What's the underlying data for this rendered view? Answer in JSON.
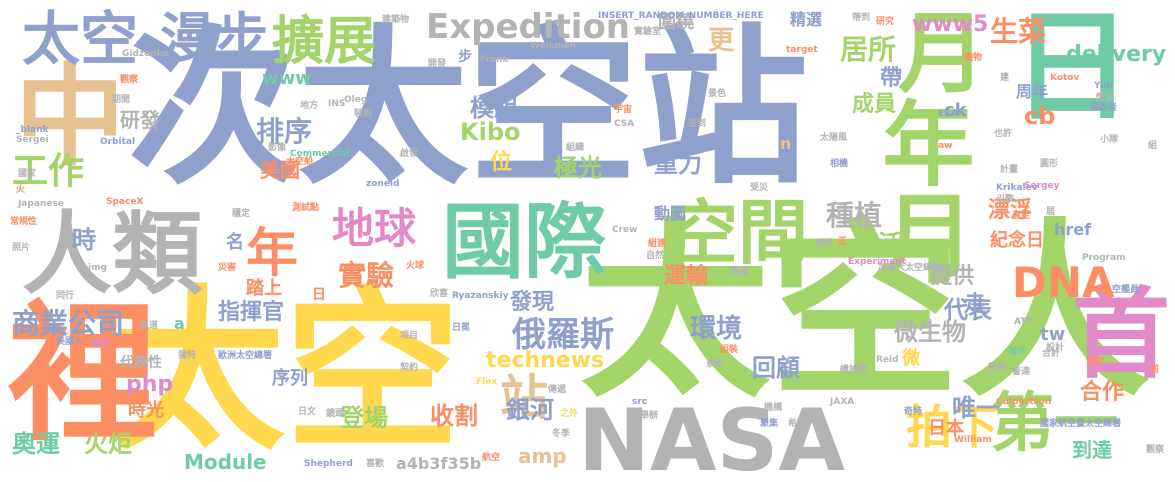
{
  "palette": {
    "blue": "#8fa0cc",
    "green": "#a2d46a",
    "yellow": "#ffd84d",
    "orange": "#fb8e63",
    "pink": "#e289c8",
    "teal": "#6ecba6",
    "tan": "#e5c290",
    "gray": "#b3b3b3"
  },
  "words": [
    {
      "text": "次太空站"
    },
    {
      "text": "太空人"
    },
    {
      "text": "太空"
    },
    {
      "text": "國際"
    },
    {
      "text": "NASA"
    },
    {
      "text": "中"
    },
    {
      "text": "裡"
    },
    {
      "text": "人類"
    },
    {
      "text": "年月"
    },
    {
      "text": "日"
    },
    {
      "text": "月"
    },
    {
      "text": "首"
    },
    {
      "text": "空間"
    },
    {
      "text": "太空"
    },
    {
      "text": "漫步"
    },
    {
      "text": "擴展"
    },
    {
      "text": "Expedition"
    },
    {
      "text": "地球"
    },
    {
      "text": "年"
    },
    {
      "text": "第一"
    },
    {
      "text": "DNA"
    },
    {
      "text": "工作"
    },
    {
      "text": "拍下"
    },
    {
      "text": "站"
    },
    {
      "text": "俄羅斯"
    },
    {
      "text": "商業公司"
    },
    {
      "text": "實驗"
    },
    {
      "text": "排序"
    },
    {
      "text": "種植"
    },
    {
      "text": "居所"
    },
    {
      "text": "生菜"
    },
    {
      "text": "www5"
    },
    {
      "text": "delivery"
    },
    {
      "text": "模組"
    },
    {
      "text": "Kibo"
    },
    {
      "text": "成員"
    },
    {
      "text": "cb"
    },
    {
      "text": "環境"
    },
    {
      "text": "運輸"
    },
    {
      "text": "生活"
    },
    {
      "text": "重力"
    },
    {
      "text": "極光"
    },
    {
      "text": "指揮官"
    },
    {
      "text": "奧運"
    },
    {
      "text": "火炬"
    },
    {
      "text": "Module"
    },
    {
      "text": "technews"
    },
    {
      "text": "銀河"
    },
    {
      "text": "登場"
    },
    {
      "text": "收割"
    },
    {
      "text": "回顧"
    },
    {
      "text": "合作"
    },
    {
      "text": "唯一"
    },
    {
      "text": "到達"
    },
    {
      "text": "微生物"
    },
    {
      "text": "代表"
    },
    {
      "text": "提供"
    },
    {
      "text": "漂浮"
    },
    {
      "text": "紀念日"
    },
    {
      "text": "href"
    },
    {
      "text": "amp"
    },
    {
      "text": "a4b3f35b"
    },
    {
      "text": "php"
    },
    {
      "text": "發現"
    },
    {
      "text": "研發"
    },
    {
      "text": "帶"
    },
    {
      "text": "周年"
    },
    {
      "text": "www"
    },
    {
      "text": "更"
    },
    {
      "text": "圍繞"
    },
    {
      "text": "美國"
    },
    {
      "text": "序列"
    },
    {
      "text": "時光"
    },
    {
      "text": "代表性"
    },
    {
      "text": "踏上"
    },
    {
      "text": "時"
    },
    {
      "text": "名"
    },
    {
      "text": "位"
    },
    {
      "text": "精選"
    },
    {
      "text": "動圖"
    },
    {
      "text": "日本"
    },
    {
      "text": "走"
    },
    {
      "text": "微"
    },
    {
      "text": "tw"
    },
    {
      "text": "ck"
    },
    {
      "text": "n"
    },
    {
      "text": "a"
    },
    {
      "text": "日"
    },
    {
      "text": "步"
    },
    {
      "text": "INSERT_RANDOM_NUMBER_HERE"
    },
    {
      "text": "實驗室"
    },
    {
      "text": "帶到"
    },
    {
      "text": "研究"
    },
    {
      "text": "建築物"
    },
    {
      "text": "Frank"
    },
    {
      "text": "Weisman"
    },
    {
      "text": "Gidzenko"
    },
    {
      "text": "觀察"
    },
    {
      "text": "期間"
    },
    {
      "text": "地方"
    },
    {
      "text": "INS"
    },
    {
      "text": "Oleg"
    },
    {
      "text": "裝到"
    },
    {
      "text": "開發"
    },
    {
      "text": "_blank"
    },
    {
      "text": "Sergei"
    },
    {
      "text": "Orbital"
    },
    {
      "text": "Commercial"
    },
    {
      "text": "影像"
    },
    {
      "text": "國家"
    },
    {
      "text": "太空船"
    },
    {
      "text": "SpaceX"
    },
    {
      "text": "測試點"
    },
    {
      "text": "Japanese"
    },
    {
      "text": "zoneid"
    },
    {
      "text": "穩定"
    },
    {
      "text": "常規性"
    },
    {
      "text": "照片"
    },
    {
      "text": "img"
    },
    {
      "text": "災害"
    },
    {
      "text": "火球"
    },
    {
      "text": "同行"
    },
    {
      "text": "軌道"
    },
    {
      "text": "美國人"
    },
    {
      "text": "慶祝"
    },
    {
      "text": "獨特"
    },
    {
      "text": "歐洲太空總署"
    },
    {
      "text": "Ryazanskiy"
    },
    {
      "text": "欣喜"
    },
    {
      "text": "項目"
    },
    {
      "text": "日冕"
    },
    {
      "text": "契約"
    },
    {
      "text": "傳遞"
    },
    {
      "text": "日文"
    },
    {
      "text": "鏡頭"
    },
    {
      "text": "之外"
    },
    {
      "text": "Flex"
    },
    {
      "text": "冬季"
    },
    {
      "text": "Shepherd"
    },
    {
      "text": "喜歡"
    },
    {
      "text": "航空"
    },
    {
      "text": "src"
    },
    {
      "text": "舉辦"
    },
    {
      "text": "機構"
    },
    {
      "text": "聚集"
    },
    {
      "text": "希望"
    },
    {
      "text": "JAXA"
    },
    {
      "text": "William"
    },
    {
      "text": "奇特"
    },
    {
      "text": "國家航空暨太空總署"
    },
    {
      "text": "Culbertson"
    },
    {
      "text": "新聞"
    },
    {
      "text": "警達"
    },
    {
      "text": "揭示"
    },
    {
      "text": "設計"
    },
    {
      "text": "Reid"
    },
    {
      "text": "機械臂"
    },
    {
      "text": "景象"
    },
    {
      "text": "組裝"
    },
    {
      "text": "ATK"
    },
    {
      "text": "合計"
    },
    {
      "text": "發射"
    },
    {
      "text": "空艦員"
    },
    {
      "text": "Program"
    },
    {
      "text": "加拿大太空總署"
    },
    {
      "text": "Experiment"
    },
    {
      "text": "奧運"
    },
    {
      "text": "組建"
    },
    {
      "text": "自然"
    },
    {
      "text": "Crew"
    },
    {
      "text": "受災"
    },
    {
      "text": "組織"
    },
    {
      "text": "啟發"
    },
    {
      "text": "CSA"
    },
    {
      "text": "送到"
    },
    {
      "text": "宇宙"
    },
    {
      "text": "景色"
    },
    {
      "text": "太陽風"
    },
    {
      "text": "相機"
    },
    {
      "text": "aw"
    },
    {
      "text": "ESA"
    },
    {
      "text": "Kotov"
    },
    {
      "text": "Yun"
    },
    {
      "text": "情況"
    },
    {
      "text": "發表者"
    },
    {
      "text": "target"
    },
    {
      "text": "鏡物"
    },
    {
      "text": "建"
    },
    {
      "text": "也許"
    },
    {
      "text": "計畫"
    },
    {
      "text": "小隊"
    },
    {
      "text": "Krikalev"
    },
    {
      "text": "圓形"
    },
    {
      "text": "Sergey"
    },
    {
      "text": "引擎"
    },
    {
      "text": "直至"
    },
    {
      "text": "郵件"
    },
    {
      "text": "組"
    },
    {
      "text": "火"
    },
    {
      "text": "前"
    },
    {
      "text": "正"
    },
    {
      "text": "屆"
    },
    {
      "text": "觀察"
    }
  ]
}
